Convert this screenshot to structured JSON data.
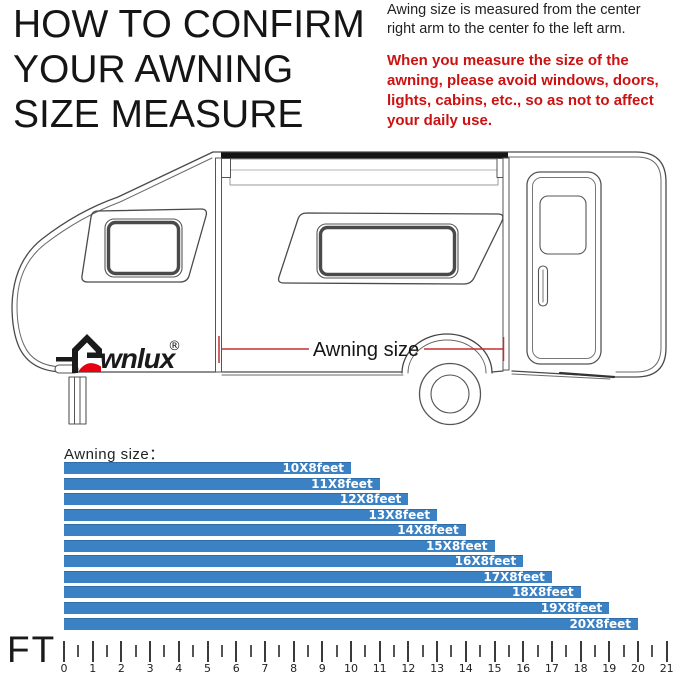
{
  "header": {
    "title_lines": [
      "HOW TO CONFIRM",
      "YOUR AWNING",
      "SIZE MEASURE"
    ]
  },
  "info": {
    "text": "Awing size is measured from the center right arm to the center fo the left arm."
  },
  "warning": {
    "text": "When you measure the size of the awning, please avoid windows, doors, lights, cabins, etc., so as not to affect your daily use.",
    "color": "#cc1111"
  },
  "diagram": {
    "brand_suffix": "wnlux",
    "registered_mark": "®",
    "measure_label": "Awning size",
    "measure_line_color": "#c03030",
    "logo_red": "#e60012"
  },
  "chart_data": {
    "type": "bar",
    "orientation": "horizontal",
    "title": "Awning size：",
    "categories": [
      "10X8feet",
      "11X8feet",
      "12X8feet",
      "13X8feet",
      "14X8feet",
      "15X8feet",
      "16X8feet",
      "17X8feet",
      "18X8feet",
      "19X8feet",
      "20X8feet"
    ],
    "values": [
      10,
      11,
      12,
      13,
      14,
      15,
      16,
      17,
      18,
      19,
      20
    ],
    "xlabel": "FT",
    "xlim": [
      0,
      21
    ],
    "axis_ticks": [
      0,
      1,
      2,
      3,
      4,
      5,
      6,
      7,
      8,
      9,
      10,
      11,
      12,
      13,
      14,
      15,
      16,
      17,
      18,
      19,
      20,
      21
    ],
    "minor_tick_step": 0.5,
    "bar_color": "#3b82c5",
    "label_color": "#ffffff",
    "legend": "none",
    "grid": false
  }
}
